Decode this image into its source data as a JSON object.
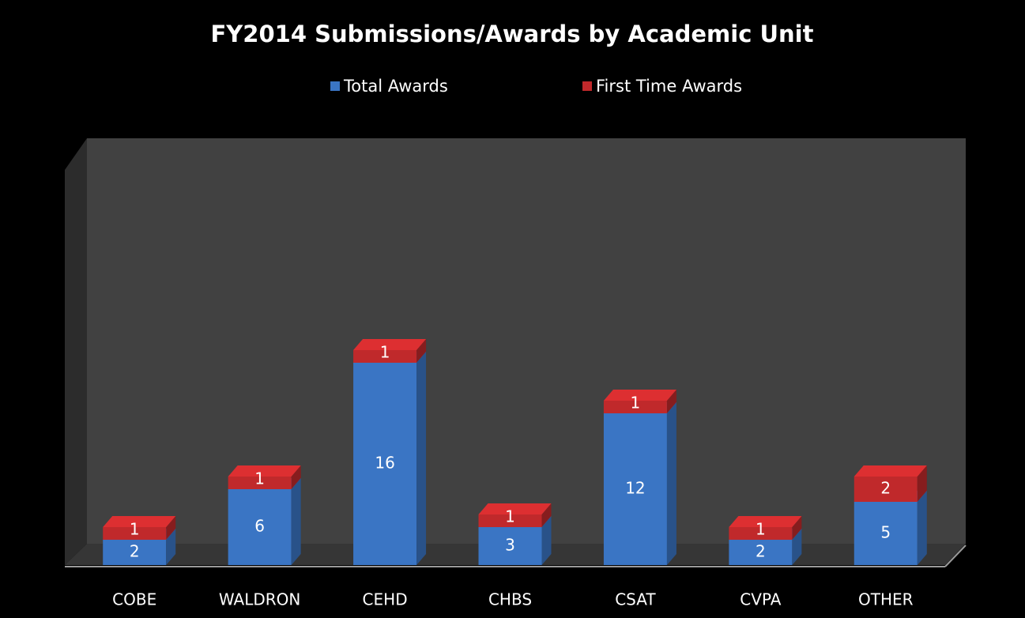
{
  "chart_data": {
    "type": "stacked-bar-3d",
    "title": "FY2014 Submissions/Awards by Academic Unit",
    "categories": [
      "COBE",
      "WALDRON",
      "CEHD",
      "CHBS",
      "CSAT",
      "CVPA",
      "OTHER"
    ],
    "series": [
      {
        "name": "Total Awards",
        "color": "#3a75c4",
        "values": [
          2,
          6,
          16,
          3,
          12,
          2,
          5
        ]
      },
      {
        "name": "First Time Awards",
        "color": "#c0292b",
        "values": [
          1,
          1,
          1,
          1,
          1,
          1,
          2
        ]
      }
    ],
    "ylim": [
      0,
      30
    ],
    "legend": "top"
  }
}
